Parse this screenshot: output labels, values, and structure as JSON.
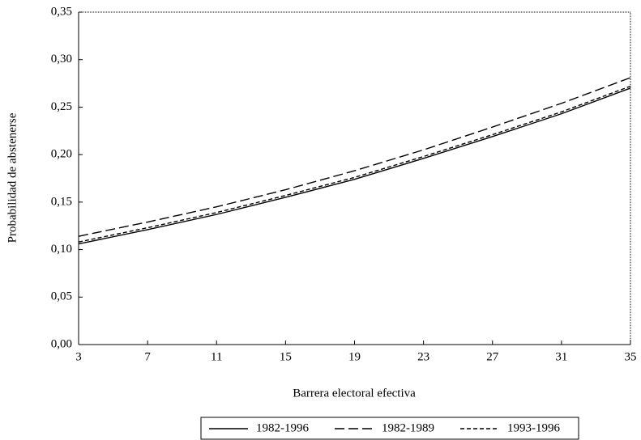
{
  "chart_data": {
    "type": "line",
    "xlabel": "Barrera electoral efectiva",
    "ylabel": "Probabilidad de abstenerse",
    "x": [
      3,
      7,
      11,
      15,
      19,
      23,
      27,
      31,
      35
    ],
    "series": [
      {
        "name": "1982-1996",
        "color": "#000000",
        "linestyle": "solid",
        "values": [
          0.106,
          0.121,
          0.137,
          0.155,
          0.174,
          0.196,
          0.219,
          0.243,
          0.27
        ]
      },
      {
        "name": "1982-1989",
        "color": "#000000",
        "linestyle": "long-dash",
        "values": [
          0.114,
          0.129,
          0.145,
          0.163,
          0.183,
          0.205,
          0.229,
          0.254,
          0.281
        ]
      },
      {
        "name": "1993-1996",
        "color": "#000000",
        "linestyle": "short-dash",
        "values": [
          0.108,
          0.123,
          0.139,
          0.157,
          0.176,
          0.198,
          0.221,
          0.245,
          0.272
        ]
      }
    ],
    "xlim": [
      3,
      35
    ],
    "xticks": [
      3,
      7,
      11,
      15,
      19,
      23,
      27,
      31,
      35
    ],
    "ylim": [
      0,
      0.35
    ],
    "yticks": [
      {
        "value": 0,
        "label": "0,00"
      },
      {
        "value": 0.05,
        "label": "0,05"
      },
      {
        "value": 0.1,
        "label": "0,10"
      },
      {
        "value": 0.15,
        "label": "0,15"
      },
      {
        "value": 0.2,
        "label": "0,20"
      },
      {
        "value": 0.25,
        "label": "0,25"
      },
      {
        "value": 0.3,
        "label": "0,30"
      },
      {
        "value": 0.35,
        "label": "0,35"
      }
    ],
    "grid": false,
    "legend": "bottom"
  }
}
